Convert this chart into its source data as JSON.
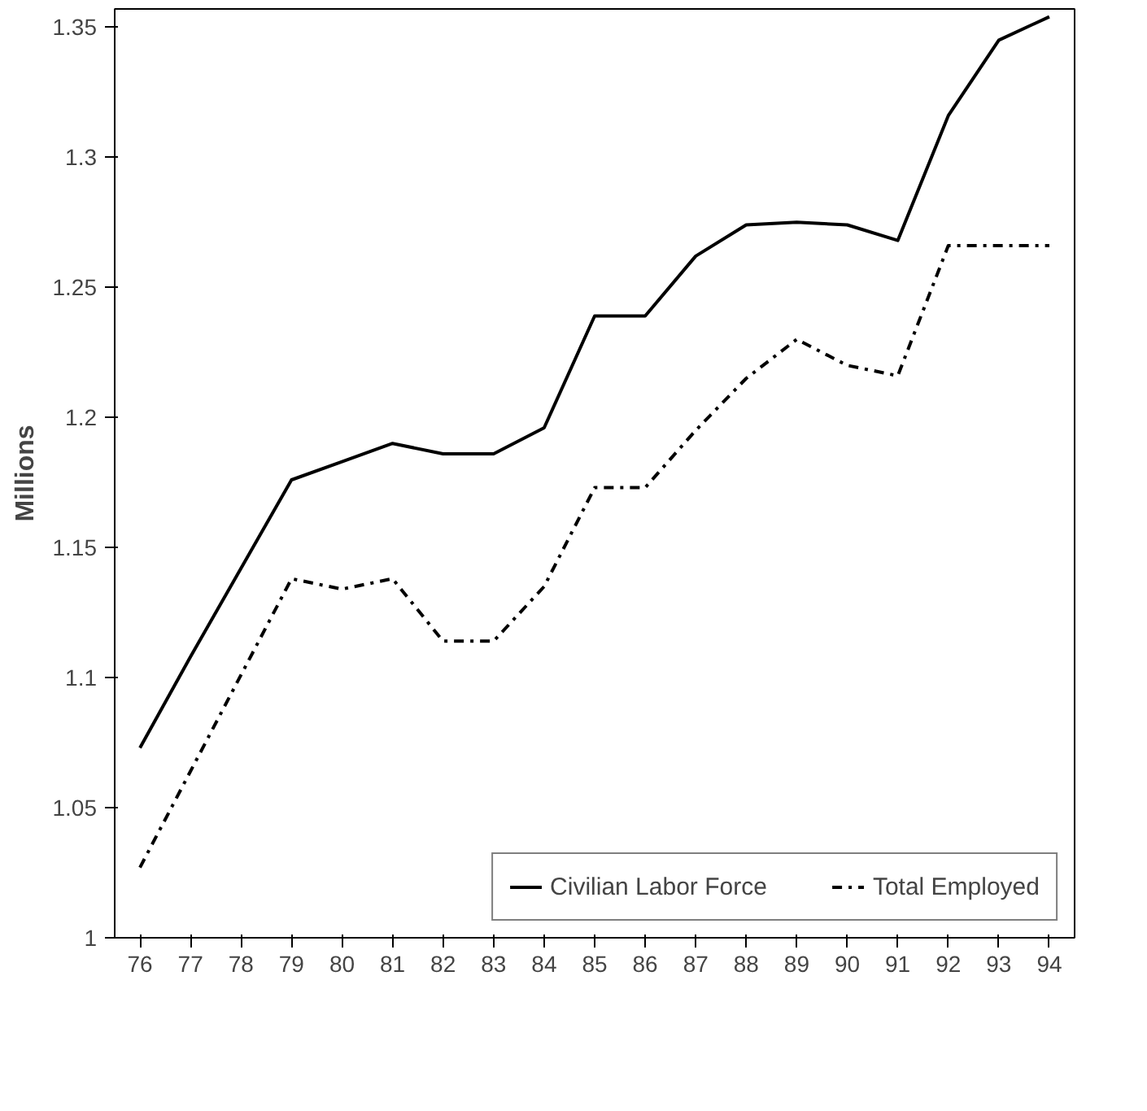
{
  "chart_data": {
    "type": "line",
    "ylabel": "Millions",
    "categories": [
      "76",
      "77",
      "78",
      "79",
      "80",
      "81",
      "82",
      "83",
      "84",
      "85",
      "86",
      "87",
      "88",
      "89",
      "90",
      "91",
      "92",
      "93",
      "94"
    ],
    "series": [
      {
        "name": "Civilian Labor Force",
        "color": "#000000",
        "line_style": "solid",
        "values": [
          1.073,
          1.108,
          1.142,
          1.176,
          1.183,
          1.19,
          1.186,
          1.186,
          1.196,
          1.239,
          1.239,
          1.262,
          1.274,
          1.275,
          1.274,
          1.268,
          1.316,
          1.345,
          1.354
        ]
      },
      {
        "name": "Total Employed",
        "color": "#000000",
        "line_style": "dashdot",
        "values": [
          1.027,
          1.064,
          1.101,
          1.138,
          1.134,
          1.138,
          1.114,
          1.114,
          1.135,
          1.173,
          1.173,
          1.195,
          1.215,
          1.23,
          1.22,
          1.216,
          1.266,
          1.266,
          1.266
        ]
      }
    ],
    "ylim": [
      1,
      1.357
    ],
    "yticks": [
      1,
      1.05,
      1.1,
      1.15,
      1.2,
      1.25,
      1.3,
      1.35
    ],
    "grid": false,
    "legend": "bottom right",
    "marker": "none"
  }
}
